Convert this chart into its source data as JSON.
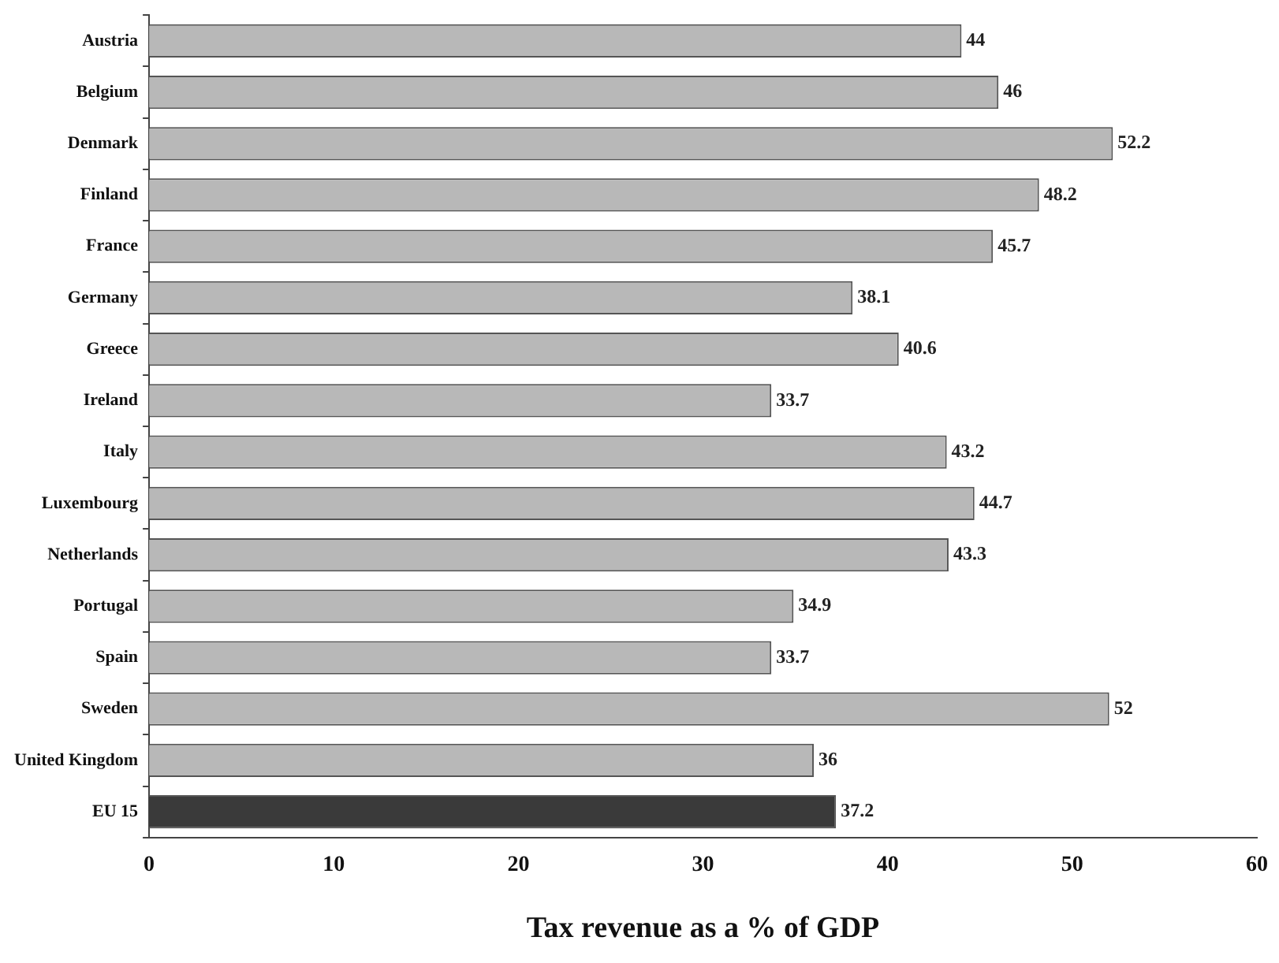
{
  "chart_data": {
    "type": "bar",
    "orientation": "horizontal",
    "xlabel": "Tax revenue as a % of GDP",
    "categories": [
      "Austria",
      "Belgium",
      "Denmark",
      "Finland",
      "France",
      "Germany",
      "Greece",
      "Ireland",
      "Italy",
      "Luxembourg",
      "Netherlands",
      "Portugal",
      "Spain",
      "Sweden",
      "United Kingdom",
      "EU 15"
    ],
    "values": [
      44,
      46,
      52.2,
      48.2,
      45.7,
      38.1,
      40.6,
      33.7,
      43.2,
      44.7,
      43.3,
      34.9,
      33.7,
      52,
      36,
      37.2
    ],
    "colors": [
      "#b8b8b8",
      "#b8b8b8",
      "#b8b8b8",
      "#b8b8b8",
      "#b8b8b8",
      "#b8b8b8",
      "#b8b8b8",
      "#b8b8b8",
      "#b8b8b8",
      "#b8b8b8",
      "#b8b8b8",
      "#b8b8b8",
      "#b8b8b8",
      "#b8b8b8",
      "#b8b8b8",
      "#3a3a3a"
    ],
    "xlim": [
      0,
      60
    ],
    "xticks": [
      0,
      10,
      20,
      30,
      40,
      50,
      60
    ],
    "grid": false,
    "legend": false,
    "data_labels": true
  }
}
